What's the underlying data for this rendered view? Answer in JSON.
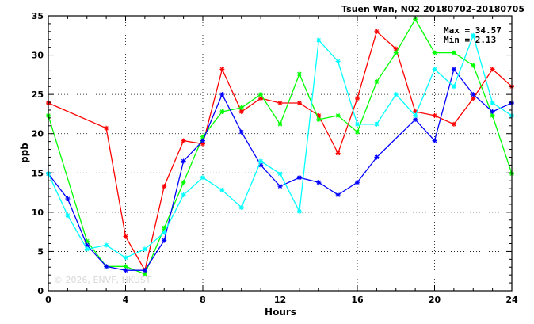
{
  "chart_data": {
    "type": "line",
    "title": "Tsuen Wan, N02 20180702–20180705",
    "xlabel": "Hours",
    "ylabel": "ppb",
    "xlim": [
      0,
      24
    ],
    "ylim": [
      0,
      35
    ],
    "xticks": [
      0,
      4,
      8,
      12,
      16,
      20,
      24
    ],
    "yticks": [
      0,
      5,
      10,
      15,
      20,
      25,
      30,
      35
    ],
    "grid": true,
    "stats": {
      "max_label": "Max = 34.57",
      "min_label": "Min = 2.13"
    },
    "watermark": "© 2026, ENVF, HKUST",
    "series": [
      {
        "color": "#ff0000",
        "points": [
          [
            0,
            23.9
          ],
          [
            3,
            20.7
          ],
          [
            4,
            6.9
          ],
          [
            5,
            2.6
          ],
          [
            6,
            13.3
          ],
          [
            7,
            19.1
          ],
          [
            8,
            18.7
          ],
          [
            9,
            28.2
          ],
          [
            10,
            22.8
          ],
          [
            11,
            24.5
          ],
          [
            12,
            23.9
          ],
          [
            13,
            23.9
          ],
          [
            14,
            22.3
          ],
          [
            15,
            17.5
          ],
          [
            16,
            24.5
          ],
          [
            17,
            33.0
          ],
          [
            18,
            30.8
          ],
          [
            19,
            22.8
          ],
          [
            20,
            22.3
          ],
          [
            21,
            21.2
          ],
          [
            22,
            24.5
          ],
          [
            23,
            28.2
          ],
          [
            24,
            26.0
          ]
        ]
      },
      {
        "color": "#00ff00",
        "points": [
          [
            0,
            22.3
          ],
          [
            2,
            6.3
          ],
          [
            3,
            3.1
          ],
          [
            4,
            3.1
          ],
          [
            5,
            2.13
          ],
          [
            6,
            8.0
          ],
          [
            7,
            13.8
          ],
          [
            8,
            19.6
          ],
          [
            9,
            22.8
          ],
          [
            10,
            23.3
          ],
          [
            11,
            25.0
          ],
          [
            12,
            21.2
          ],
          [
            13,
            27.6
          ],
          [
            14,
            21.8
          ],
          [
            15,
            22.3
          ],
          [
            16,
            20.2
          ],
          [
            17,
            26.6
          ],
          [
            18,
            30.3
          ],
          [
            19,
            34.57
          ],
          [
            20,
            30.3
          ],
          [
            21,
            30.3
          ],
          [
            22,
            28.7
          ],
          [
            23,
            22.3
          ],
          [
            24,
            14.9
          ]
        ]
      },
      {
        "color": "#0000ff",
        "points": [
          [
            0,
            14.9
          ],
          [
            1,
            11.7
          ],
          [
            2,
            5.8
          ],
          [
            3,
            3.1
          ],
          [
            4,
            2.6
          ],
          [
            5,
            2.6
          ],
          [
            6,
            6.4
          ],
          [
            7,
            16.5
          ],
          [
            8,
            19.1
          ],
          [
            9,
            25.0
          ],
          [
            10,
            20.2
          ],
          [
            11,
            16.0
          ],
          [
            12,
            13.3
          ],
          [
            13,
            14.4
          ],
          [
            14,
            13.8
          ],
          [
            15,
            12.2
          ],
          [
            16,
            13.8
          ],
          [
            17,
            17.0
          ],
          [
            19,
            21.8
          ],
          [
            20,
            19.1
          ],
          [
            21,
            28.2
          ],
          [
            22,
            25.0
          ],
          [
            23,
            22.8
          ],
          [
            24,
            23.9
          ]
        ]
      },
      {
        "color": "#00ffff",
        "points": [
          [
            0,
            14.9
          ],
          [
            1,
            9.6
          ],
          [
            2,
            5.3
          ],
          [
            3,
            5.8
          ],
          [
            4,
            4.2
          ],
          [
            5,
            5.3
          ],
          [
            6,
            7.4
          ],
          [
            7,
            12.2
          ],
          [
            8,
            14.4
          ],
          [
            9,
            12.8
          ],
          [
            10,
            10.6
          ],
          [
            11,
            16.5
          ],
          [
            12,
            14.9
          ],
          [
            13,
            10.1
          ],
          [
            14,
            31.9
          ],
          [
            15,
            29.2
          ],
          [
            16,
            21.2
          ],
          [
            17,
            21.2
          ],
          [
            18,
            25.0
          ],
          [
            19,
            22.3
          ],
          [
            20,
            28.2
          ],
          [
            21,
            26.0
          ],
          [
            22,
            32.5
          ],
          [
            23,
            23.9
          ],
          [
            24,
            22.3
          ]
        ]
      }
    ]
  }
}
